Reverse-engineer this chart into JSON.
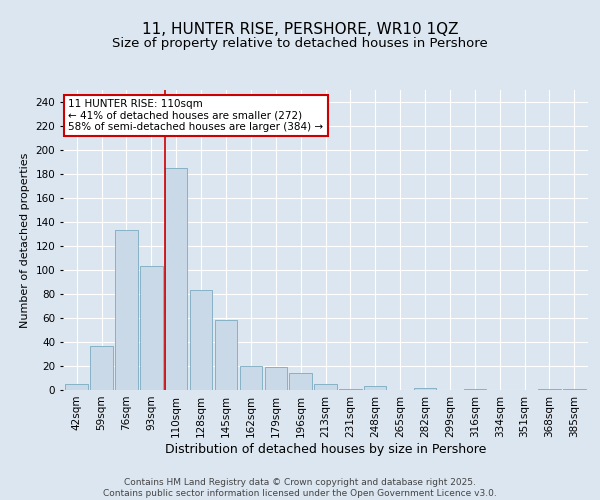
{
  "title": "11, HUNTER RISE, PERSHORE, WR10 1QZ",
  "subtitle": "Size of property relative to detached houses in Pershore",
  "xlabel": "Distribution of detached houses by size in Pershore",
  "ylabel": "Number of detached properties",
  "categories": [
    "42sqm",
    "59sqm",
    "76sqm",
    "93sqm",
    "110sqm",
    "128sqm",
    "145sqm",
    "162sqm",
    "179sqm",
    "196sqm",
    "213sqm",
    "231sqm",
    "248sqm",
    "265sqm",
    "282sqm",
    "299sqm",
    "316sqm",
    "334sqm",
    "351sqm",
    "368sqm",
    "385sqm"
  ],
  "values": [
    5,
    37,
    133,
    103,
    185,
    83,
    58,
    20,
    19,
    14,
    5,
    1,
    3,
    0,
    2,
    0,
    1,
    0,
    0,
    1,
    1
  ],
  "bar_color": "#c9d9e8",
  "bar_edge_color": "#7aaabf",
  "highlight_index": 4,
  "highlight_line_color": "#cc0000",
  "annotation_text": "11 HUNTER RISE: 110sqm\n← 41% of detached houses are smaller (272)\n58% of semi-detached houses are larger (384) →",
  "annotation_box_color": "#ffffff",
  "annotation_box_edge_color": "#cc0000",
  "ylim": [
    0,
    250
  ],
  "yticks": [
    0,
    20,
    40,
    60,
    80,
    100,
    120,
    140,
    160,
    180,
    200,
    220,
    240
  ],
  "background_color": "#dce6f0",
  "axes_background": "#dce6f0",
  "footer_text": "Contains HM Land Registry data © Crown copyright and database right 2025.\nContains public sector information licensed under the Open Government Licence v3.0.",
  "title_fontsize": 11,
  "subtitle_fontsize": 9.5,
  "xlabel_fontsize": 9,
  "ylabel_fontsize": 8,
  "tick_fontsize": 7.5,
  "annotation_fontsize": 7.5,
  "footer_fontsize": 6.5
}
